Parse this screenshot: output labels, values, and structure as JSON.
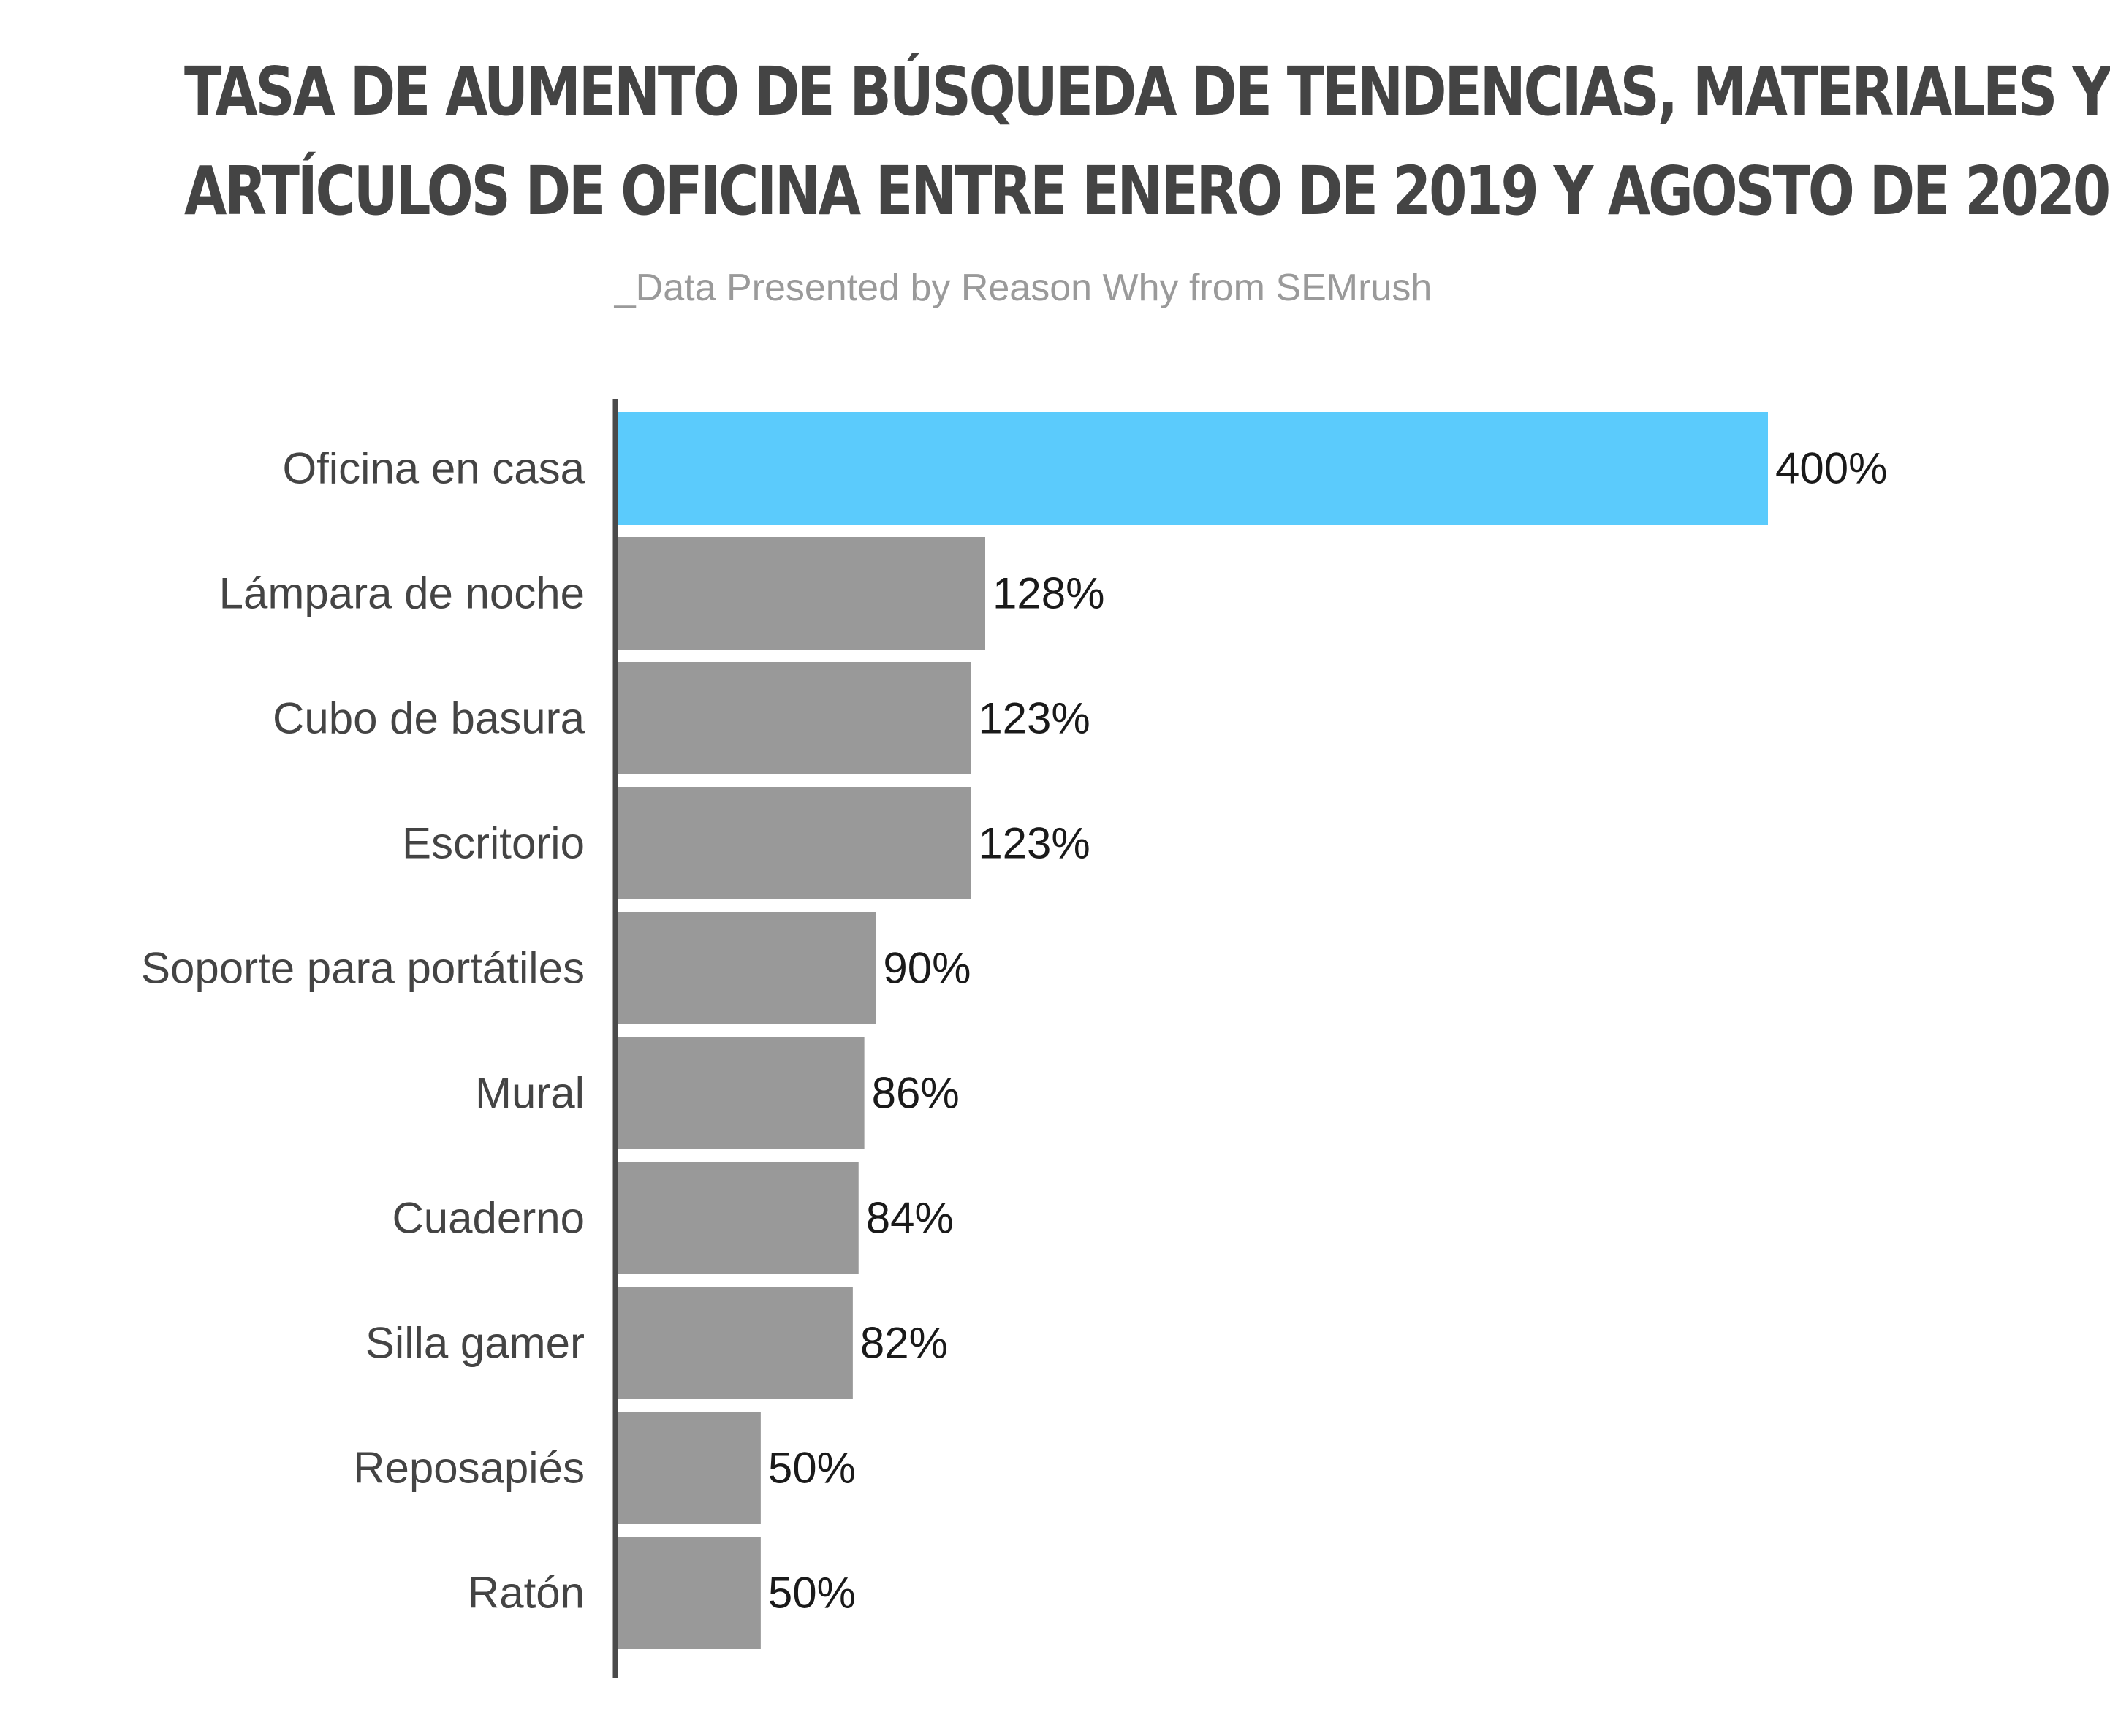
{
  "chart_data": {
    "type": "bar",
    "orientation": "horizontal",
    "title_lines": [
      "TASA DE AUMENTO DE BÚSQUEDA DE TENDENCIAS, MATERIALES Y",
      "ARTÍCULOS DE OFICINA ENTRE ENERO DE 2019 Y AGOSTO DE 2020"
    ],
    "subtitle": "_Data Presented by Reason Why from SEMrush",
    "categories": [
      "Oficina en casa",
      "Lámpara de noche",
      "Cubo de basura",
      "Escritorio",
      "Soporte para portátiles",
      "Mural",
      "Cuaderno",
      "Silla gamer",
      "Reposapiés",
      "Ratón"
    ],
    "values": [
      400,
      128,
      123,
      123,
      90,
      86,
      84,
      82,
      50,
      50
    ],
    "value_labels": [
      "400%",
      "128%",
      "123%",
      "123%",
      "90%",
      "86%",
      "84%",
      "82%",
      "50%",
      "50%"
    ],
    "unit": "%",
    "xlim": [
      0,
      400
    ],
    "grid": false,
    "legend": "none",
    "colors": {
      "highlight": "#5bcbfc",
      "default": "#999999",
      "axis": "#4a4a4a"
    },
    "highlight_index": 0
  }
}
